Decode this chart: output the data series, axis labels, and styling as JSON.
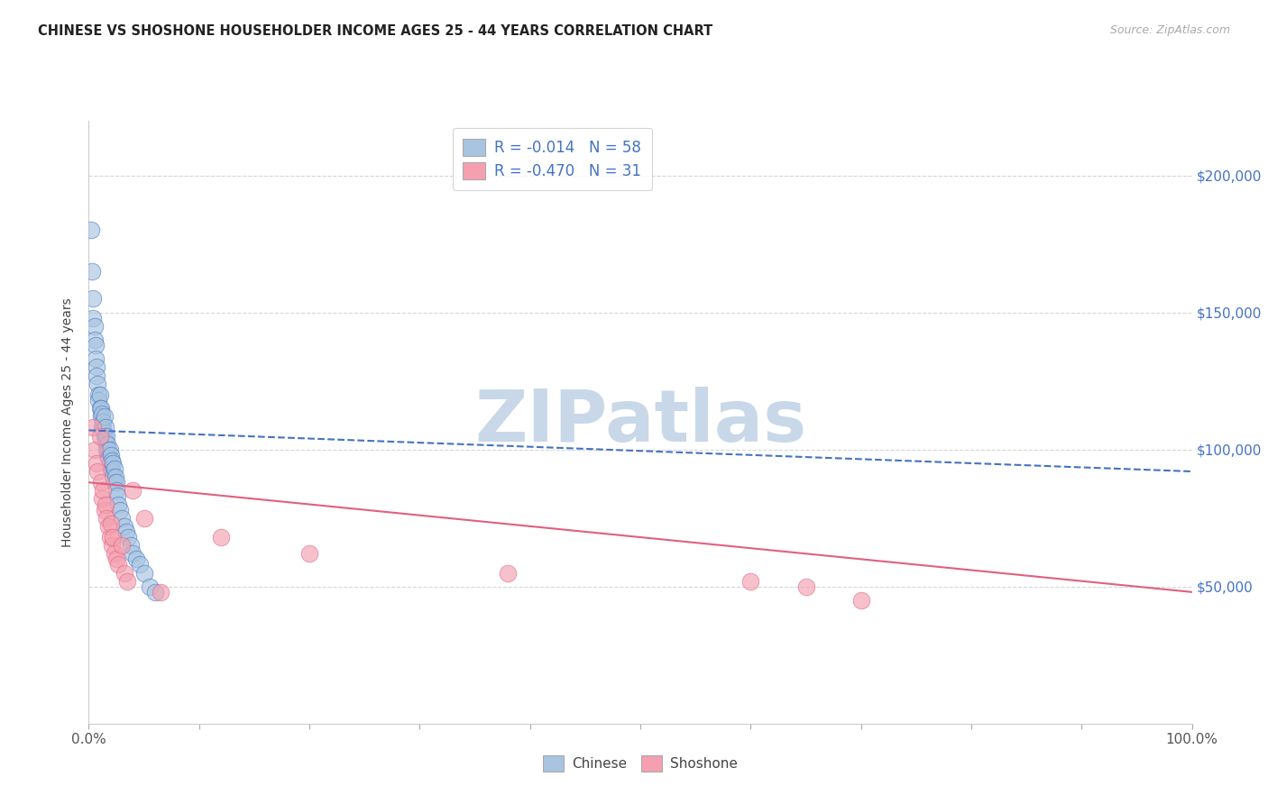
{
  "title": "CHINESE VS SHOSHONE HOUSEHOLDER INCOME AGES 25 - 44 YEARS CORRELATION CHART",
  "source": "Source: ZipAtlas.com",
  "ylabel": "Householder Income Ages 25 - 44 years",
  "xlim": [
    0,
    1.0
  ],
  "ylim": [
    0,
    220000
  ],
  "xticks": [
    0.0,
    0.1,
    0.2,
    0.3,
    0.4,
    0.5,
    0.6,
    0.7,
    0.8,
    0.9,
    1.0
  ],
  "xtick_labels": [
    "0.0%",
    "",
    "",
    "",
    "",
    "",
    "",
    "",
    "",
    "",
    "100.0%"
  ],
  "ytick_positions": [
    50000,
    100000,
    150000,
    200000
  ],
  "ytick_labels": [
    "$50,000",
    "$100,000",
    "$150,000",
    "$200,000"
  ],
  "chinese_color": "#a8c4e0",
  "shoshone_color": "#f4a0b0",
  "chinese_line_color": "#4472c4",
  "shoshone_line_color": "#e06080",
  "legend_text_color": "#4472c4",
  "watermark": "ZIPatlas",
  "watermark_color": "#c8d8e8",
  "R_chinese": -0.014,
  "N_chinese": 58,
  "R_shoshone": -0.47,
  "N_shoshone": 31,
  "chinese_x": [
    0.002,
    0.003,
    0.004,
    0.004,
    0.005,
    0.005,
    0.006,
    0.006,
    0.007,
    0.007,
    0.008,
    0.009,
    0.009,
    0.01,
    0.01,
    0.011,
    0.011,
    0.012,
    0.012,
    0.013,
    0.013,
    0.014,
    0.014,
    0.015,
    0.015,
    0.016,
    0.016,
    0.017,
    0.017,
    0.018,
    0.018,
    0.019,
    0.019,
    0.02,
    0.02,
    0.021,
    0.021,
    0.022,
    0.022,
    0.023,
    0.023,
    0.024,
    0.025,
    0.025,
    0.026,
    0.027,
    0.028,
    0.03,
    0.032,
    0.034,
    0.036,
    0.038,
    0.04,
    0.043,
    0.046,
    0.05,
    0.055,
    0.06
  ],
  "chinese_y": [
    180000,
    165000,
    155000,
    148000,
    145000,
    140000,
    138000,
    133000,
    130000,
    127000,
    124000,
    120000,
    118000,
    120000,
    115000,
    115000,
    112000,
    113000,
    108000,
    110000,
    107000,
    112000,
    105000,
    108000,
    103000,
    105000,
    100000,
    102000,
    98000,
    100000,
    97000,
    100000,
    95000,
    98000,
    93000,
    96000,
    92000,
    95000,
    90000,
    93000,
    88000,
    90000,
    88000,
    85000,
    83000,
    80000,
    78000,
    75000,
    72000,
    70000,
    68000,
    65000,
    62000,
    60000,
    58000,
    55000,
    50000,
    48000
  ],
  "shoshone_x": [
    0.004,
    0.005,
    0.007,
    0.008,
    0.01,
    0.011,
    0.012,
    0.013,
    0.014,
    0.015,
    0.016,
    0.018,
    0.019,
    0.02,
    0.021,
    0.022,
    0.023,
    0.025,
    0.027,
    0.03,
    0.032,
    0.035,
    0.04,
    0.05,
    0.065,
    0.12,
    0.2,
    0.38,
    0.6,
    0.65,
    0.7
  ],
  "shoshone_y": [
    108000,
    100000,
    95000,
    92000,
    105000,
    88000,
    82000,
    85000,
    78000,
    80000,
    75000,
    72000,
    68000,
    73000,
    65000,
    68000,
    62000,
    60000,
    58000,
    65000,
    55000,
    52000,
    85000,
    75000,
    48000,
    68000,
    62000,
    55000,
    52000,
    50000,
    45000
  ],
  "chinese_trendline_x": [
    0.0,
    1.0
  ],
  "chinese_trendline_y": [
    107000,
    92000
  ],
  "shoshone_trendline_x": [
    0.0,
    1.0
  ],
  "shoshone_trendline_y": [
    88000,
    48000
  ]
}
